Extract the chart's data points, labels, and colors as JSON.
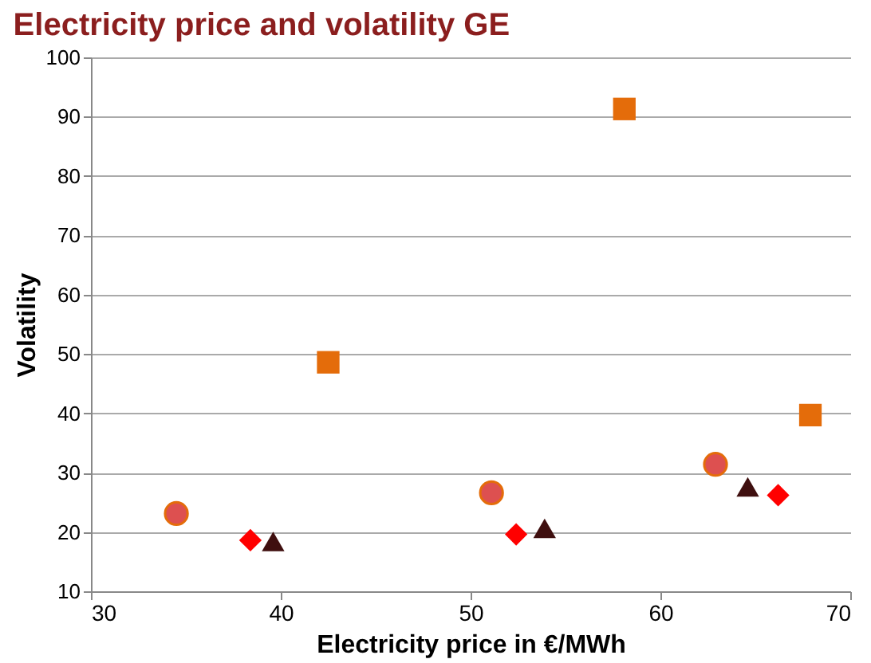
{
  "chart_data": {
    "type": "scatter",
    "title": "Electricity price and volatility GE",
    "xlabel": "Electricity price in €/MWh",
    "ylabel": "Volatility",
    "xlim": [
      30,
      70
    ],
    "xticks": [
      30,
      40,
      50,
      60,
      70
    ],
    "ylim": [
      10,
      100
    ],
    "yticks": [
      10,
      20,
      30,
      40,
      50,
      60,
      70,
      80,
      90,
      100
    ],
    "grid": "y",
    "legend": false,
    "series": [
      {
        "color": "#dd5050",
        "marker": "circle",
        "x": [
          34.5,
          51.1,
          62.9
        ],
        "values": [
          23.1,
          26.6,
          31.4
        ]
      },
      {
        "color": "#ff0000",
        "marker": "diamond",
        "x": [
          38.4,
          52.4,
          66.2
        ],
        "values": [
          18.6,
          19.6,
          26.2
        ]
      },
      {
        "color": "#3f0f0f",
        "marker": "triangle",
        "x": [
          39.6,
          53.9,
          64.6
        ],
        "values": [
          18.4,
          20.6,
          27.6
        ]
      },
      {
        "color": "#e46c0a",
        "marker": "square",
        "x": [
          42.5,
          58.1,
          67.9
        ],
        "values": [
          48.6,
          91.3,
          39.7
        ]
      }
    ]
  }
}
